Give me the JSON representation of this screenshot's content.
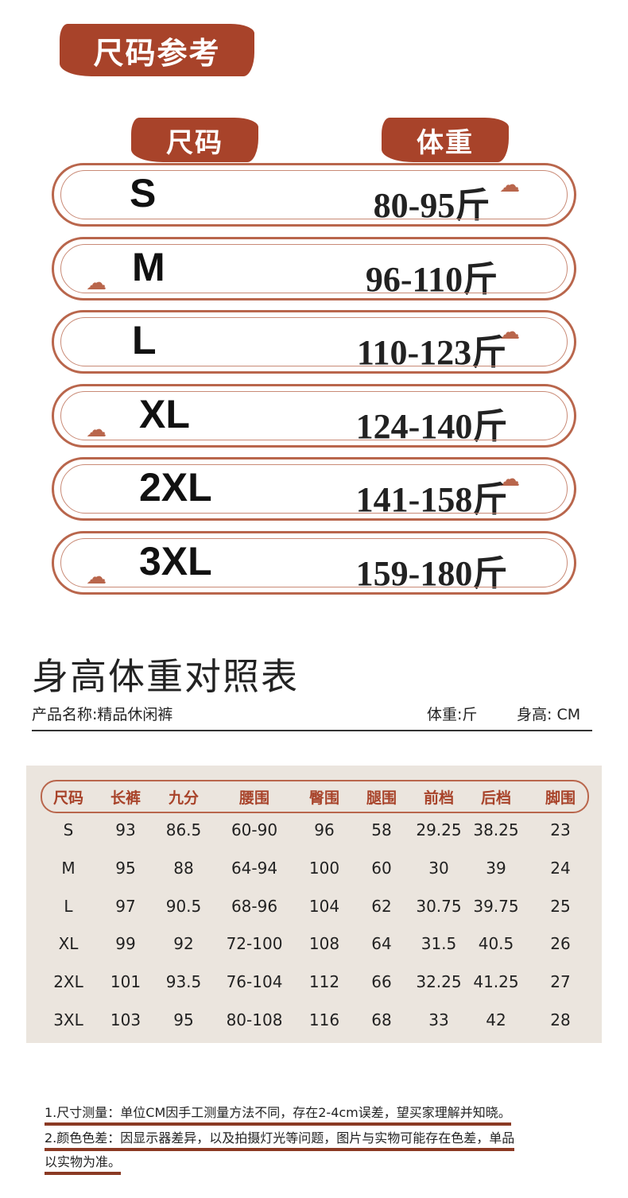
{
  "banner": {
    "title": "尺码参考"
  },
  "weight_table": {
    "headers": [
      "尺码",
      "体重"
    ],
    "rows": [
      {
        "size": "S",
        "weight": "80-95斤"
      },
      {
        "size": "M",
        "weight": "96-110斤"
      },
      {
        "size": "L",
        "weight": "110-123斤"
      },
      {
        "size": "XL",
        "weight": "124-140斤"
      },
      {
        "size": "2XL",
        "weight": "141-158斤"
      },
      {
        "size": "3XL",
        "weight": "159-180斤"
      }
    ]
  },
  "chart_section": {
    "title": "身高体重对照表",
    "product_name": "产品名称:精品休闲裤",
    "weight_unit": "体重:斤",
    "height_unit": "身高: CM"
  },
  "size_table": {
    "headers": [
      "尺码",
      "长裤",
      "九分",
      "腰围",
      "臀围",
      "腿围",
      "前档",
      "后档",
      "脚围"
    ],
    "rows": [
      [
        "S",
        "93",
        "86.5",
        "60-90",
        "96",
        "58",
        "29.25",
        "38.25",
        "23"
      ],
      [
        "M",
        "95",
        "88",
        "64-94",
        "100",
        "60",
        "30",
        "39",
        "24"
      ],
      [
        "L",
        "97",
        "90.5",
        "68-96",
        "104",
        "62",
        "30.75",
        "39.75",
        "25"
      ],
      [
        "XL",
        "99",
        "92",
        "72-100",
        "108",
        "64",
        "31.5",
        "40.5",
        "26"
      ],
      [
        "2XL",
        "101",
        "93.5",
        "76-104",
        "112",
        "66",
        "32.25",
        "41.25",
        "27"
      ],
      [
        "3XL",
        "103",
        "95",
        "80-108",
        "116",
        "68",
        "33",
        "42",
        "28"
      ]
    ]
  },
  "notes": [
    "1.尺寸测量：单位CM因手工测量方法不同，存在2-4cm误差，望买家理解并知晓。",
    "2.颜色色差：因显示器差异，以及拍摄灯光等问题，图片与实物可能存在色差，单品",
    "以实物为准。"
  ],
  "colors": {
    "accent": "#a8432a",
    "panel": "#ebe5de"
  }
}
